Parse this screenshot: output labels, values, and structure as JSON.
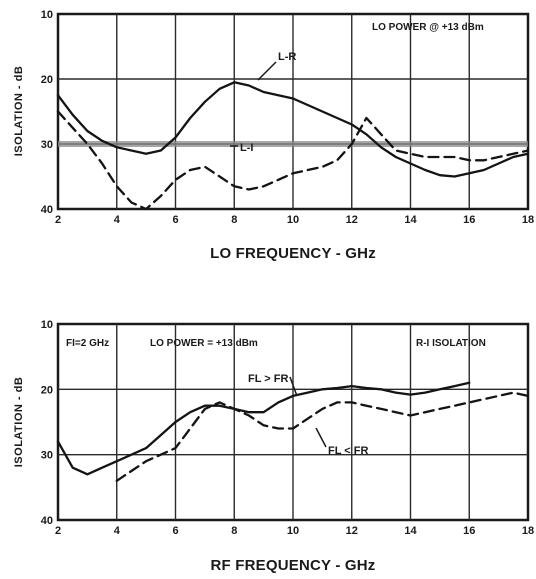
{
  "chart_data": [
    {
      "type": "line",
      "xlabel": "LO FREQUENCY - GHz",
      "ylabel": "ISOLATION - dB",
      "xlim": [
        2,
        18
      ],
      "ylim": [
        10,
        40
      ],
      "y_inverted": true,
      "x_ticks": [
        2,
        4,
        6,
        8,
        10,
        12,
        14,
        16,
        18
      ],
      "y_ticks": [
        10,
        20,
        30,
        40
      ],
      "grid": true,
      "annotations": [
        "LO POWER @ +13 dBm"
      ],
      "series": [
        {
          "name": "L-R",
          "style": "solid",
          "x": [
            2.0,
            2.5,
            3.0,
            3.5,
            4.0,
            4.5,
            5.0,
            5.5,
            6.0,
            6.5,
            7.0,
            7.5,
            8.0,
            8.5,
            9.0,
            9.5,
            10.0,
            11.0,
            12.0,
            12.5,
            13.0,
            13.5,
            14.0,
            14.5,
            15.0,
            15.5,
            16.0,
            16.5,
            17.0,
            17.5,
            18.0
          ],
          "y": [
            22.5,
            25.5,
            28.0,
            29.5,
            30.5,
            31.0,
            31.5,
            31.0,
            29.0,
            26.0,
            23.5,
            21.5,
            20.5,
            21.0,
            22.0,
            22.5,
            23.0,
            25.0,
            27.0,
            28.5,
            30.5,
            32.0,
            33.0,
            34.0,
            34.8,
            35.0,
            34.5,
            34.0,
            33.0,
            32.0,
            31.5
          ]
        },
        {
          "name": "L-I",
          "style": "dashed",
          "x": [
            2.0,
            2.5,
            3.0,
            3.5,
            4.0,
            4.5,
            5.0,
            5.5,
            6.0,
            6.5,
            7.0,
            7.5,
            8.0,
            8.5,
            9.0,
            9.5,
            10.0,
            11.0,
            11.5,
            12.0,
            12.5,
            13.0,
            13.5,
            14.0,
            14.5,
            15.0,
            15.5,
            16.0,
            16.5,
            17.0,
            17.5,
            18.0
          ],
          "y": [
            25.0,
            27.5,
            30.0,
            33.0,
            36.5,
            39.0,
            40.0,
            38.0,
            35.5,
            34.0,
            33.5,
            35.0,
            36.5,
            37.0,
            36.5,
            35.5,
            34.5,
            33.5,
            32.5,
            30.0,
            26.0,
            28.5,
            31.0,
            31.5,
            32.0,
            32.0,
            32.0,
            32.5,
            32.5,
            32.0,
            31.5,
            31.0
          ]
        }
      ],
      "reference_line_y": 30
    },
    {
      "type": "line",
      "xlabel": "RF FREQUENCY - GHz",
      "ylabel": "ISOLATION - dB",
      "xlim": [
        2,
        18
      ],
      "ylim": [
        10,
        40
      ],
      "y_inverted": true,
      "x_ticks": [
        2,
        4,
        6,
        8,
        10,
        12,
        14,
        16,
        18
      ],
      "y_ticks": [
        10,
        20,
        30,
        40
      ],
      "grid": true,
      "annotations": [
        "FI=2 GHz",
        "LO POWER = +13 dBm",
        "R-I ISOLATION"
      ],
      "series": [
        {
          "name": "FL > FR",
          "style": "solid",
          "x": [
            2.0,
            2.5,
            3.0,
            3.5,
            4.0,
            4.5,
            5.0,
            5.5,
            6.0,
            6.5,
            7.0,
            7.5,
            8.0,
            8.5,
            9.0,
            9.5,
            10.0,
            10.5,
            11.0,
            11.5,
            12.0,
            12.5,
            13.0,
            13.5,
            14.0,
            14.5,
            15.0,
            15.5,
            16.0
          ],
          "y": [
            28.0,
            32.0,
            33.0,
            32.0,
            31.0,
            30.0,
            29.0,
            27.0,
            25.0,
            23.5,
            22.5,
            22.5,
            23.0,
            23.5,
            23.5,
            22.0,
            21.0,
            20.5,
            20.0,
            19.8,
            19.5,
            19.8,
            20.0,
            20.5,
            20.8,
            20.5,
            20.0,
            19.5,
            19.0
          ]
        },
        {
          "name": "FL < FR",
          "style": "dashed",
          "x": [
            4.0,
            4.5,
            5.0,
            5.5,
            6.0,
            6.5,
            7.0,
            7.5,
            8.0,
            8.5,
            9.0,
            9.5,
            10.0,
            10.5,
            11.0,
            11.5,
            12.0,
            12.5,
            13.0,
            13.5,
            14.0,
            14.5,
            15.0,
            15.5,
            16.0,
            16.5,
            17.0,
            17.5,
            18.0
          ],
          "y": [
            34.0,
            32.5,
            31.0,
            30.0,
            29.0,
            26.0,
            23.0,
            22.0,
            23.0,
            24.0,
            25.5,
            26.0,
            26.0,
            24.5,
            23.0,
            22.0,
            22.0,
            22.5,
            23.0,
            23.5,
            24.0,
            23.5,
            23.0,
            22.5,
            22.0,
            21.5,
            21.0,
            20.5,
            21.0
          ]
        }
      ]
    }
  ]
}
